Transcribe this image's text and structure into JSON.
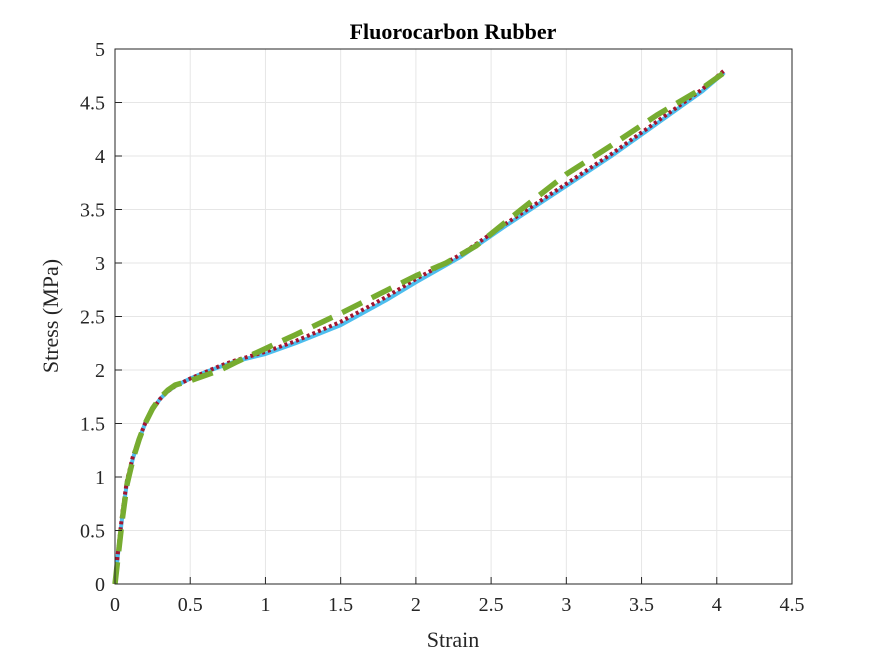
{
  "chart_data": {
    "type": "line",
    "title": "Fluorocarbon Rubber",
    "xlabel": "Strain",
    "ylabel": "Stress (MPa)",
    "xlim": [
      0,
      4.5
    ],
    "ylim": [
      0,
      5
    ],
    "xticks": [
      0,
      0.5,
      1,
      1.5,
      2,
      2.5,
      3,
      3.5,
      4,
      4.5
    ],
    "yticks": [
      0,
      0.5,
      1,
      1.5,
      2,
      2.5,
      3,
      3.5,
      4,
      4.5,
      5
    ],
    "grid": true,
    "series": [
      {
        "color": "#4DBEEE",
        "style": "solid",
        "x": [
          0,
          0.02,
          0.05,
          0.08,
          0.12,
          0.16,
          0.2,
          0.25,
          0.3,
          0.35,
          0.4,
          0.5,
          0.6,
          0.7,
          0.8,
          1.0,
          1.2,
          1.5,
          1.8,
          2.0,
          2.3,
          2.6,
          3.0,
          3.3,
          3.6,
          3.9,
          4.05
        ],
        "y": [
          0,
          0.28,
          0.65,
          0.95,
          1.18,
          1.35,
          1.5,
          1.63,
          1.73,
          1.8,
          1.85,
          1.92,
          1.98,
          2.03,
          2.08,
          2.15,
          2.25,
          2.42,
          2.65,
          2.82,
          3.06,
          3.35,
          3.72,
          4.0,
          4.3,
          4.6,
          4.78
        ]
      },
      {
        "color": "#A2142F",
        "style": "dotted",
        "x": [
          0,
          0.02,
          0.05,
          0.08,
          0.12,
          0.16,
          0.2,
          0.25,
          0.3,
          0.35,
          0.4,
          0.5,
          0.6,
          0.7,
          0.8,
          1.0,
          1.2,
          1.5,
          1.8,
          2.0,
          2.3,
          2.6,
          3.0,
          3.3,
          3.6,
          3.9,
          4.05
        ],
        "y": [
          0,
          0.3,
          0.68,
          0.97,
          1.2,
          1.36,
          1.5,
          1.63,
          1.73,
          1.8,
          1.85,
          1.92,
          1.98,
          2.04,
          2.09,
          2.17,
          2.27,
          2.45,
          2.68,
          2.85,
          3.08,
          3.37,
          3.74,
          4.02,
          4.32,
          4.62,
          4.8
        ]
      },
      {
        "color": "#77AC30",
        "style": "dashed",
        "x": [
          0,
          0.02,
          0.05,
          0.08,
          0.12,
          0.16,
          0.2,
          0.25,
          0.3,
          0.35,
          0.4,
          0.5,
          0.6,
          0.7,
          0.8,
          1.0,
          1.2,
          1.5,
          1.8,
          2.0,
          2.2,
          2.4,
          2.7,
          3.0,
          3.3,
          3.6,
          3.9,
          4.05
        ],
        "y": [
          0,
          0.25,
          0.62,
          0.93,
          1.17,
          1.35,
          1.5,
          1.64,
          1.74,
          1.81,
          1.86,
          1.9,
          1.95,
          2.0,
          2.07,
          2.2,
          2.33,
          2.53,
          2.74,
          2.88,
          3.0,
          3.16,
          3.5,
          3.83,
          4.1,
          4.38,
          4.63,
          4.78
        ]
      }
    ]
  }
}
